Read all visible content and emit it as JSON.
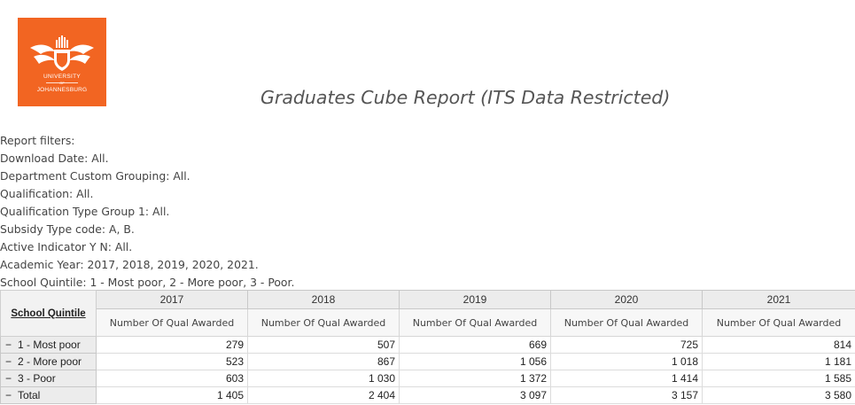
{
  "logo": {
    "line1": "UNIVERSITY",
    "line_of": "OF",
    "line2": "JOHANNESBURG",
    "color": "#f26522"
  },
  "title": "Graduates Cube Report (ITS Data Restricted)",
  "filters": [
    "Report filters:",
    "Download Date: All.",
    "Department Custom Grouping: All.",
    "Qualification: All.",
    "Qualification Type Group 1: All.",
    "Subsidy Type code: A, B.",
    "Active Indicator Y N: All.",
    "Academic Year: 2017, 2018, 2019, 2020, 2021.",
    "School Quintile: 1 - Most poor, 2 - More poor, 3 - Poor."
  ],
  "table": {
    "row_header": "School Quintile",
    "years": [
      "2017",
      "2018",
      "2019",
      "2020",
      "2021"
    ],
    "measure": "Number Of Qual Awarded",
    "rows": [
      {
        "toggle": "−",
        "label": "1 - Most poor",
        "values": [
          "279",
          "507",
          "669",
          "725",
          "814"
        ]
      },
      {
        "toggle": "−",
        "label": "2 - More poor",
        "values": [
          "523",
          "867",
          "1 056",
          "1 018",
          "1 181"
        ]
      },
      {
        "toggle": "−",
        "label": "3 - Poor",
        "values": [
          "603",
          "1 030",
          "1 372",
          "1 414",
          "1 585"
        ]
      },
      {
        "toggle": "−",
        "label": "Total",
        "values": [
          "1 405",
          "2 404",
          "3 097",
          "3 157",
          "3 580"
        ]
      }
    ]
  }
}
